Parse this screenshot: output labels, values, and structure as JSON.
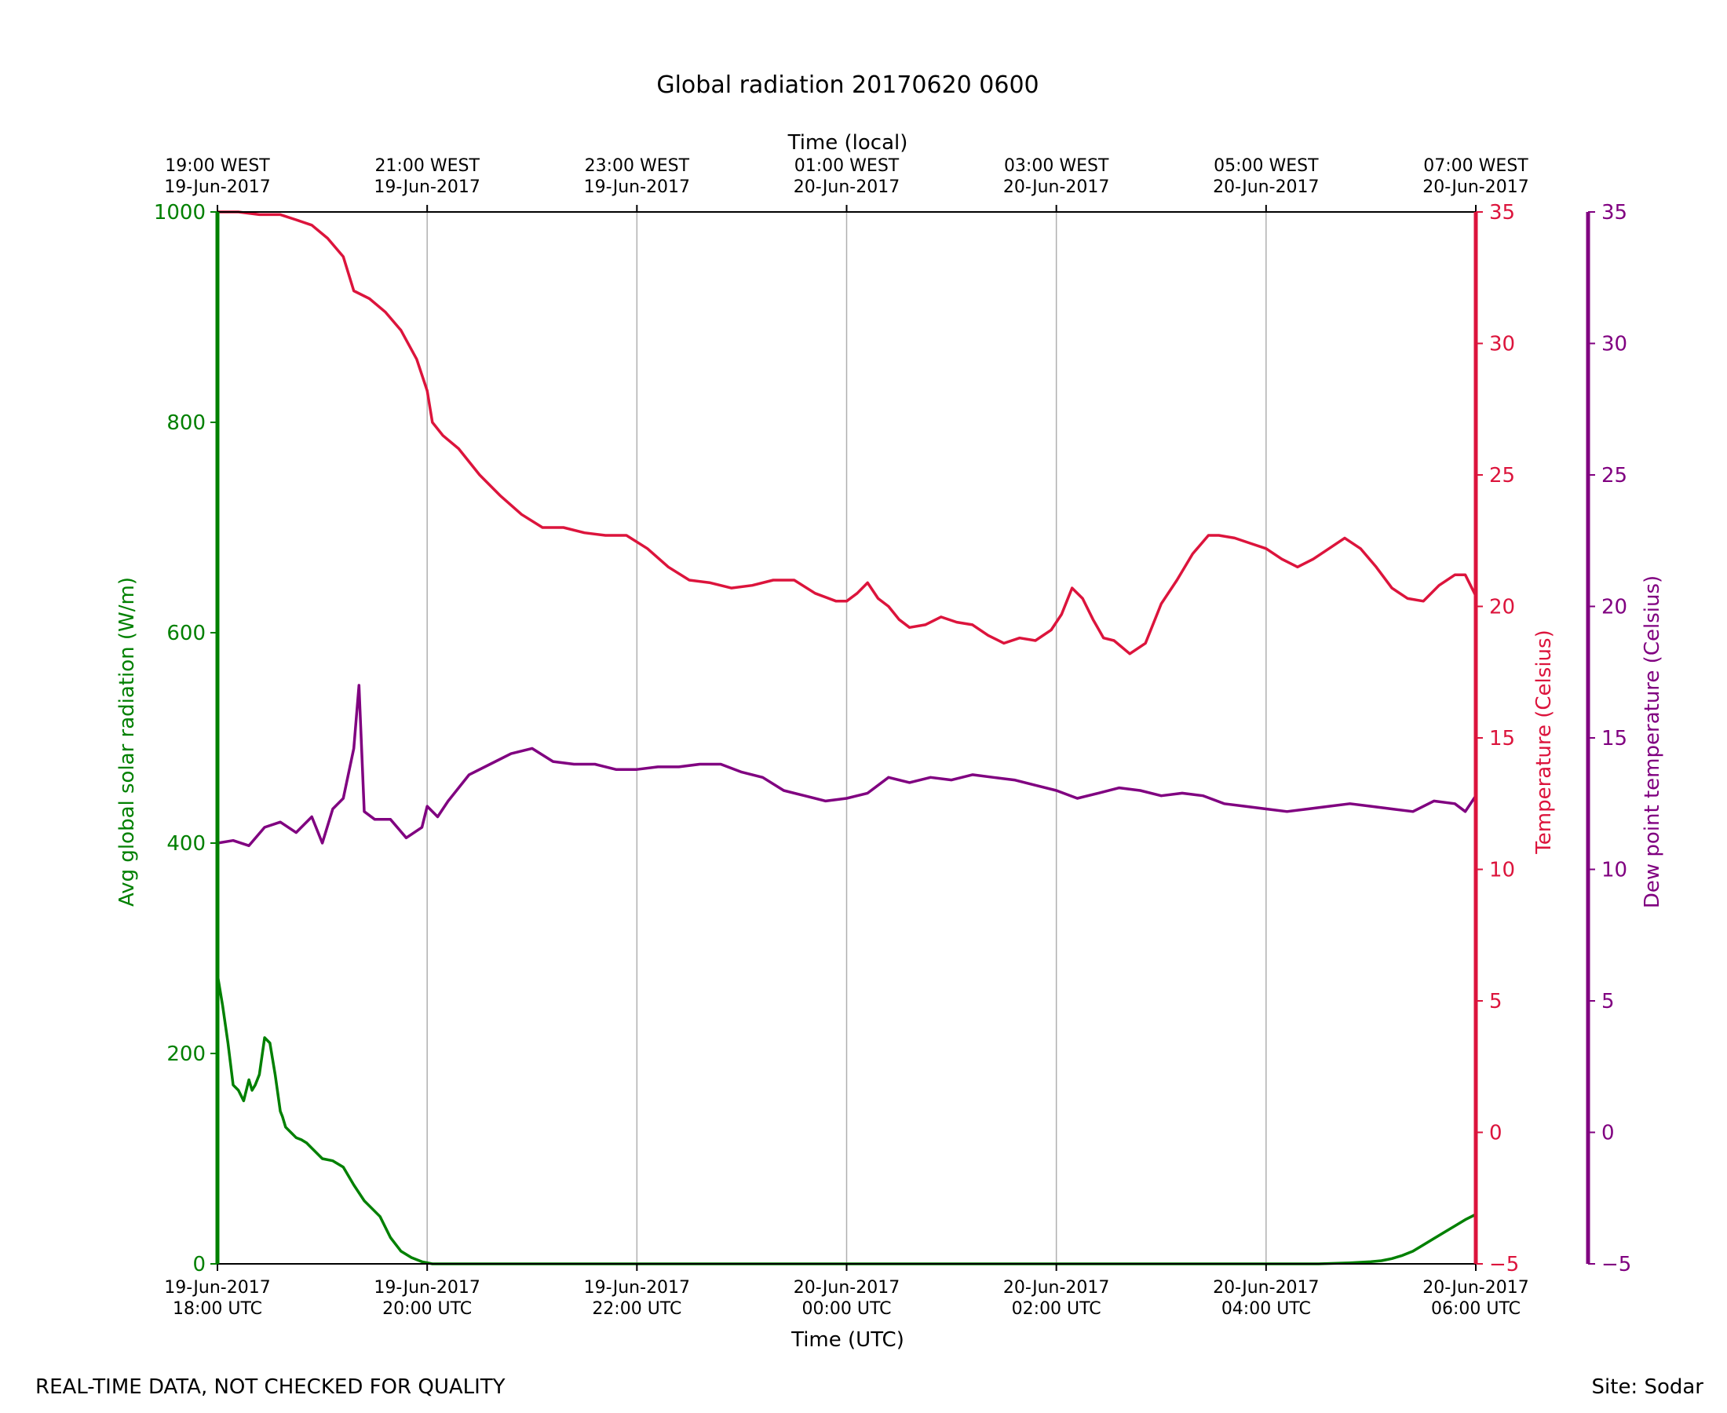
{
  "chart_data": {
    "type": "line",
    "title": "Global radiation 20170620 0600",
    "top_axis_label": "Time (local)",
    "bottom_axis_label": "Time (UTC)",
    "left_axis_label": "Avg global solar radiation (W/m)",
    "right_axis_label": "Temperature (Celsius)",
    "far_right_axis_label": "Dew point temperature (Celsius)",
    "footer_left": "REAL-TIME DATA, NOT CHECKED FOR QUALITY",
    "footer_right": "Site: Sodar",
    "x_range_hours": [
      0,
      12
    ],
    "bottom_ticks": [
      {
        "hour": 0,
        "line1": "19-Jun-2017",
        "line2": "18:00 UTC"
      },
      {
        "hour": 2,
        "line1": "19-Jun-2017",
        "line2": "20:00 UTC"
      },
      {
        "hour": 4,
        "line1": "19-Jun-2017",
        "line2": "22:00 UTC"
      },
      {
        "hour": 6,
        "line1": "20-Jun-2017",
        "line2": "00:00 UTC"
      },
      {
        "hour": 8,
        "line1": "20-Jun-2017",
        "line2": "02:00 UTC"
      },
      {
        "hour": 10,
        "line1": "20-Jun-2017",
        "line2": "04:00 UTC"
      },
      {
        "hour": 12,
        "line1": "20-Jun-2017",
        "line2": "06:00 UTC"
      }
    ],
    "top_ticks": [
      {
        "hour": 0,
        "line1": "19:00 WEST",
        "line2": "19-Jun-2017"
      },
      {
        "hour": 2,
        "line1": "21:00 WEST",
        "line2": "19-Jun-2017"
      },
      {
        "hour": 4,
        "line1": "23:00 WEST",
        "line2": "19-Jun-2017"
      },
      {
        "hour": 6,
        "line1": "01:00 WEST",
        "line2": "20-Jun-2017"
      },
      {
        "hour": 8,
        "line1": "03:00 WEST",
        "line2": "20-Jun-2017"
      },
      {
        "hour": 10,
        "line1": "05:00 WEST",
        "line2": "20-Jun-2017"
      },
      {
        "hour": 12,
        "line1": "07:00 WEST",
        "line2": "20-Jun-2017"
      }
    ],
    "left_ylim": [
      0,
      1000
    ],
    "left_ticks": [
      "0",
      "200",
      "400",
      "600",
      "800",
      "1000"
    ],
    "left_tick_values": [
      0,
      200,
      400,
      600,
      800,
      1000
    ],
    "right_ylim": [
      -5,
      35
    ],
    "right_ticks": [
      "−5",
      "0",
      "5",
      "10",
      "15",
      "20",
      "25",
      "30",
      "35"
    ],
    "right_tick_values": [
      -5,
      0,
      5,
      10,
      15,
      20,
      25,
      30,
      35
    ],
    "far_right_ticks": [
      "−5",
      "0",
      "5",
      "10",
      "15",
      "20",
      "25",
      "30",
      "35"
    ],
    "far_right_tick_values": [
      -5,
      0,
      5,
      10,
      15,
      20,
      25,
      30,
      35
    ],
    "colors": {
      "radiation": "#008000",
      "temperature": "#dc143c",
      "dewpoint": "#800080",
      "grid": "#b0b0b0",
      "axis": "#000000"
    },
    "series": [
      {
        "name": "Avg global solar radiation",
        "axis": "left",
        "x": [
          0.0,
          0.05,
          0.1,
          0.15,
          0.2,
          0.25,
          0.3,
          0.33,
          0.36,
          0.4,
          0.45,
          0.5,
          0.55,
          0.6,
          0.62,
          0.65,
          0.7,
          0.75,
          0.8,
          0.85,
          0.9,
          1.0,
          1.1,
          1.2,
          1.3,
          1.4,
          1.45,
          1.55,
          1.65,
          1.75,
          1.85,
          1.95,
          2.05,
          2.15,
          2.25,
          2.35,
          2.45,
          2.55,
          2.7,
          3.0,
          3.5,
          4.0,
          5.0,
          6.0,
          7.0,
          8.0,
          9.0,
          10.0,
          10.5,
          10.8,
          11.0,
          11.1,
          11.2,
          11.3,
          11.4,
          11.5,
          11.6,
          11.7,
          11.8,
          11.9,
          12.0
        ],
        "y": [
          275,
          245,
          210,
          170,
          165,
          155,
          175,
          165,
          170,
          180,
          215,
          210,
          180,
          145,
          140,
          130,
          125,
          120,
          118,
          115,
          110,
          100,
          98,
          92,
          75,
          60,
          55,
          45,
          25,
          12,
          6,
          2,
          0,
          0,
          0,
          0,
          0,
          0,
          0,
          0,
          0,
          0,
          0,
          0,
          0,
          0,
          0,
          0,
          0,
          1,
          2,
          3,
          5,
          8,
          12,
          18,
          24,
          30,
          36,
          42,
          47
        ]
      },
      {
        "name": "Temperature",
        "axis": "right",
        "x": [
          0.0,
          0.2,
          0.4,
          0.6,
          0.75,
          0.9,
          1.05,
          1.2,
          1.3,
          1.45,
          1.6,
          1.75,
          1.9,
          2.0,
          2.05,
          2.15,
          2.3,
          2.5,
          2.7,
          2.9,
          3.1,
          3.3,
          3.5,
          3.7,
          3.9,
          4.1,
          4.3,
          4.5,
          4.7,
          4.9,
          5.1,
          5.3,
          5.5,
          5.7,
          5.9,
          6.0,
          6.1,
          6.2,
          6.3,
          6.4,
          6.5,
          6.6,
          6.75,
          6.9,
          7.05,
          7.2,
          7.35,
          7.5,
          7.65,
          7.8,
          7.95,
          8.05,
          8.15,
          8.25,
          8.35,
          8.45,
          8.55,
          8.7,
          8.85,
          9.0,
          9.15,
          9.3,
          9.45,
          9.55,
          9.7,
          9.85,
          10.0,
          10.15,
          10.3,
          10.45,
          10.6,
          10.75,
          10.9,
          11.05,
          11.2,
          11.35,
          11.5,
          11.65,
          11.8,
          11.9,
          12.0
        ],
        "y": [
          35,
          35,
          34.9,
          34.9,
          34.7,
          34.5,
          34.0,
          33.3,
          32.0,
          31.7,
          31.2,
          30.5,
          29.4,
          28.2,
          27.0,
          26.5,
          26.0,
          25.0,
          24.2,
          23.5,
          23.0,
          23.0,
          22.8,
          22.7,
          22.7,
          22.2,
          21.5,
          21.0,
          20.9,
          20.7,
          20.8,
          21.0,
          21.0,
          20.5,
          20.2,
          20.2,
          20.5,
          20.9,
          20.3,
          20.0,
          19.5,
          19.2,
          19.3,
          19.6,
          19.4,
          19.3,
          18.9,
          18.6,
          18.8,
          18.7,
          19.1,
          19.7,
          20.7,
          20.3,
          19.5,
          18.8,
          18.7,
          18.2,
          18.6,
          20.1,
          21.0,
          22.0,
          22.7,
          22.7,
          22.6,
          22.4,
          22.2,
          21.8,
          21.5,
          21.8,
          22.2,
          22.6,
          22.2,
          21.5,
          20.7,
          20.3,
          20.2,
          20.8,
          21.2,
          21.2,
          20.4
        ]
      },
      {
        "name": "Dew point temperature",
        "axis": "far_right",
        "x": [
          0.0,
          0.15,
          0.3,
          0.45,
          0.6,
          0.75,
          0.9,
          1.0,
          1.1,
          1.2,
          1.3,
          1.35,
          1.4,
          1.5,
          1.65,
          1.8,
          1.95,
          2.0,
          2.1,
          2.2,
          2.4,
          2.6,
          2.8,
          3.0,
          3.2,
          3.4,
          3.6,
          3.8,
          4.0,
          4.2,
          4.4,
          4.6,
          4.8,
          5.0,
          5.2,
          5.4,
          5.6,
          5.8,
          6.0,
          6.2,
          6.4,
          6.6,
          6.8,
          7.0,
          7.2,
          7.4,
          7.6,
          7.8,
          8.0,
          8.2,
          8.4,
          8.6,
          8.8,
          9.0,
          9.2,
          9.4,
          9.6,
          9.8,
          10.0,
          10.2,
          10.4,
          10.6,
          10.8,
          11.0,
          11.2,
          11.4,
          11.6,
          11.8,
          11.9,
          12.0
        ],
        "y": [
          11.0,
          11.1,
          10.9,
          11.6,
          11.8,
          11.4,
          12.0,
          11.0,
          12.3,
          12.7,
          14.6,
          17.0,
          12.2,
          11.9,
          11.9,
          11.2,
          11.6,
          12.4,
          12.0,
          12.6,
          13.6,
          14.0,
          14.4,
          14.6,
          14.1,
          14.0,
          14.0,
          13.8,
          13.8,
          13.9,
          13.9,
          14.0,
          14.0,
          13.7,
          13.5,
          13.0,
          12.8,
          12.6,
          12.7,
          12.9,
          13.5,
          13.3,
          13.5,
          13.4,
          13.6,
          13.5,
          13.4,
          13.2,
          13.0,
          12.7,
          12.9,
          13.1,
          13.0,
          12.8,
          12.9,
          12.8,
          12.5,
          12.4,
          12.3,
          12.2,
          12.3,
          12.4,
          12.5,
          12.4,
          12.3,
          12.2,
          12.6,
          12.5,
          12.2,
          12.8
        ]
      }
    ]
  }
}
